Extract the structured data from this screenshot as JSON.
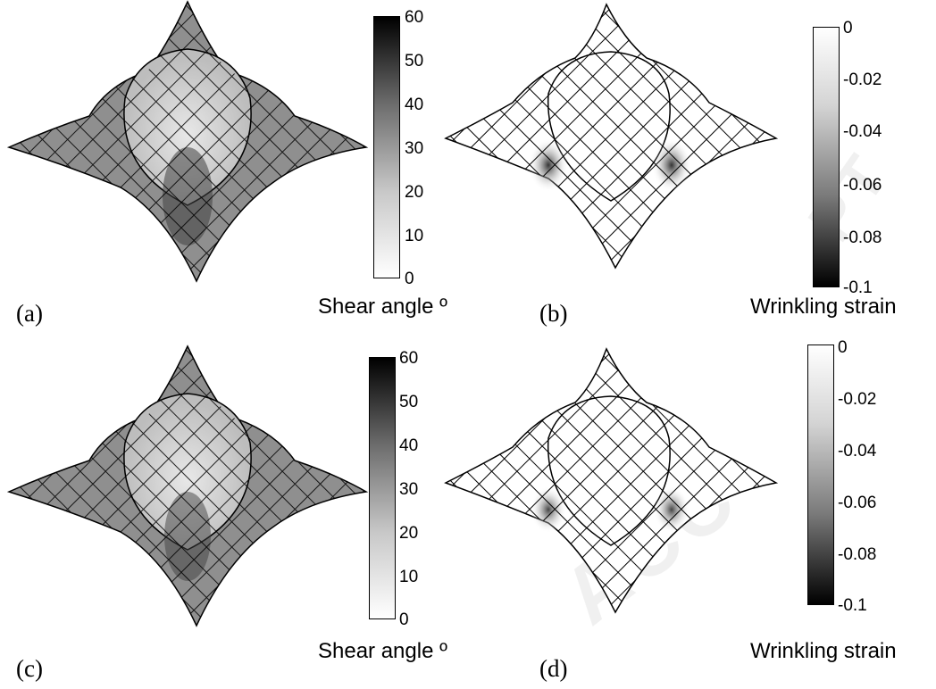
{
  "panels": [
    {
      "id": "a",
      "caption": "(a)",
      "colorbar": {
        "kind": "shear",
        "ticks": [
          "60",
          "50",
          "40",
          "30",
          "20",
          "10",
          "0"
        ],
        "label": "Shear angle º"
      }
    },
    {
      "id": "b",
      "caption": "(b)",
      "colorbar": {
        "kind": "wrinkle",
        "ticks": [
          "0",
          "-0.02",
          "-0.04",
          "-0.06",
          "-0.08",
          "-0.1"
        ],
        "label": "Wrinkling strain"
      }
    },
    {
      "id": "c",
      "caption": "(c)",
      "colorbar": {
        "kind": "shear",
        "ticks": [
          "60",
          "50",
          "40",
          "30",
          "20",
          "10",
          "0"
        ],
        "label": "Shear angle º"
      }
    },
    {
      "id": "d",
      "caption": "(d)",
      "colorbar": {
        "kind": "wrinkle",
        "ticks": [
          "0",
          "-0.02",
          "-0.04",
          "-0.06",
          "-0.08",
          "-0.1"
        ],
        "label": "Wrinkling strain"
      }
    }
  ],
  "colors": {
    "mesh": "#000000",
    "shear_low": "#ffffff",
    "shear_high": "#000000",
    "wrinkle_none": "#ffffff",
    "wrinkle_max": "#000000"
  }
}
